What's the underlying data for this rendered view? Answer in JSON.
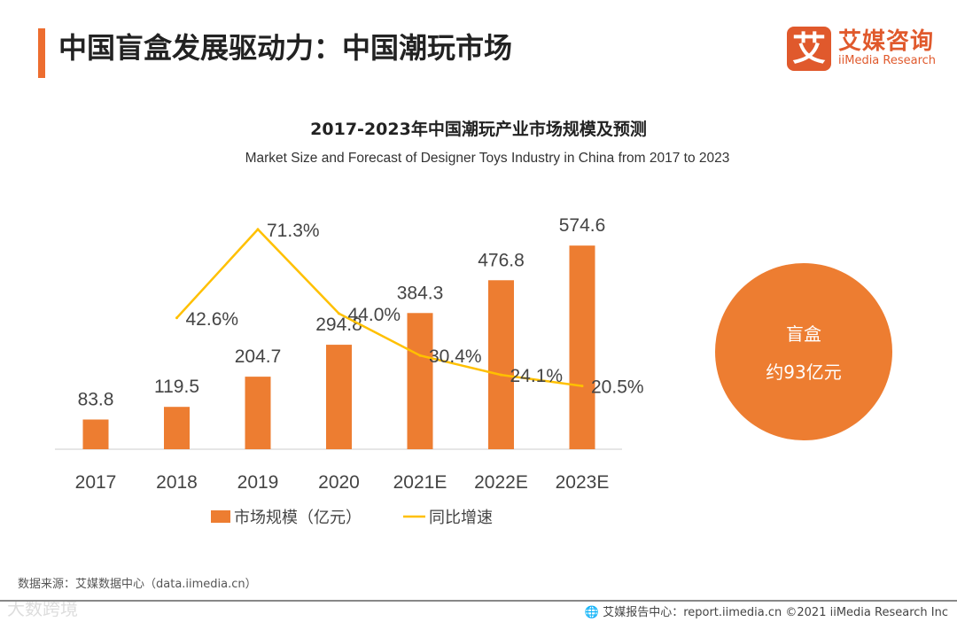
{
  "header": {
    "title": "中国盲盒发展驱动力：中国潮玩市场"
  },
  "logo": {
    "mark": "艾",
    "cn": "艾媒咨询",
    "en": "iiMedia Research"
  },
  "chart_data": {
    "type": "bar+line",
    "title": "2017-2023年中国潮玩产业市场规模及预测",
    "subtitle": "Market Size and Forecast of Designer Toys Industry in China from 2017 to 2023",
    "categories": [
      "2017",
      "2018",
      "2019",
      "2020",
      "2021E",
      "2022E",
      "2023E"
    ],
    "series": [
      {
        "name": "市场规模（亿元）",
        "type": "bar",
        "color": "#ED7D31",
        "values": [
          83.8,
          119.5,
          204.7,
          294.8,
          384.3,
          476.8,
          574.6
        ],
        "labels": [
          "83.8",
          "119.5",
          "204.7",
          "294.8",
          "384.3",
          "476.8",
          "574.6"
        ]
      },
      {
        "name": "同比增速",
        "type": "line",
        "color": "#FFC000",
        "values": [
          null,
          42.6,
          71.3,
          44.0,
          30.4,
          24.1,
          20.5
        ],
        "labels": [
          "",
          "42.6%",
          "71.3%",
          "44.0%",
          "30.4%",
          "24.1%",
          "20.5%"
        ]
      }
    ],
    "legend": "bottom",
    "grid": false
  },
  "callout": {
    "title": "盲盒",
    "value": "约93亿元"
  },
  "source": "数据来源：艾媒数据中心（data.iimedia.cn）",
  "footer": "艾媒报告中心：report.iimedia.cn  ©2021  iiMedia Research  Inc",
  "watermark": "大数跨境"
}
